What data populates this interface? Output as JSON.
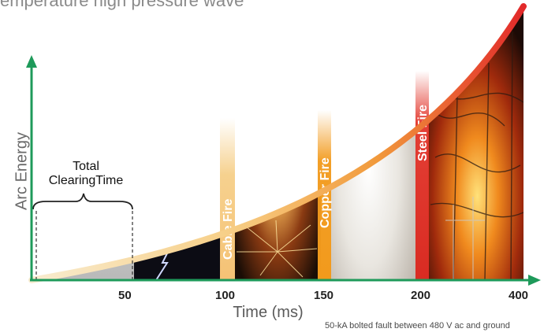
{
  "top_text": "emperature high pressure wave",
  "axes": {
    "y_label": "Arc Energy",
    "x_label": "Time (ms)",
    "x_ticks": [
      "50",
      "100",
      "150",
      "200",
      "400"
    ]
  },
  "annotations": {
    "total_clearing_time": "Total\nClearingTime",
    "cable_fire": "Cable Fire",
    "copper_fire": "Copper Fire",
    "steel_fire": "Steel Fire"
  },
  "footnote": "50-kA bolted fault between 480 V ac and ground",
  "colors": {
    "axis": "#1e9a5a",
    "curve_start": "#f7e3b8",
    "curve_end": "#e8322a",
    "cable_band": "#f5cc82",
    "copper_band": "#f29a1c",
    "steel_band": "#e2352a"
  }
}
